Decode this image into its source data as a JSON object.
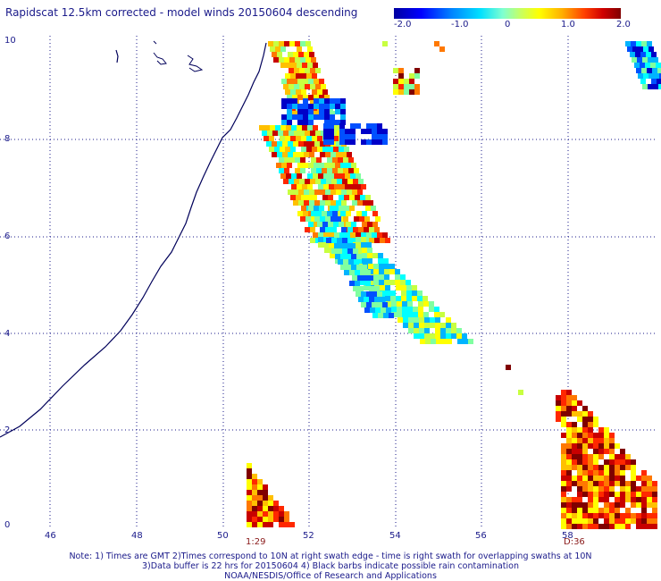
{
  "title": "Rapidscat 12.5km corrected - model winds 20150604 descending",
  "colorbar": {
    "ticks": [
      "-2.0",
      "-1.0",
      "0",
      "1.0",
      "2.0"
    ],
    "tick_values": [
      -2.0,
      -1.0,
      0,
      1.0,
      2.0
    ],
    "range": [
      -2.0,
      2.0
    ]
  },
  "axes": {
    "y_ticks": [
      "10",
      "8",
      "6",
      "4",
      "2",
      "0"
    ],
    "x_ticks": [
      "46",
      "48",
      "50",
      "52",
      "54",
      "56",
      "58"
    ],
    "lat_range": [
      0,
      10
    ],
    "lon_range": [
      44.8,
      60.3
    ],
    "grid": true
  },
  "swath_times": [
    "1:29",
    "D:36"
  ],
  "notes": [
    "Note: 1) Times are GMT 2)Times correspond to 10N at right swath edge - time is right swath for overlapping swaths at 10N",
    "3)Data buffer is 22 hrs for 20150604 4) Black barbs indicate possible rain contamination",
    "NOAA/NESDIS/Office of Research and Applications"
  ],
  "colors": {
    "coastline": "#00005a",
    "grid": "#1a1a8a",
    "text": "#1a1a8a",
    "time_label": "#8a1a1a"
  }
}
